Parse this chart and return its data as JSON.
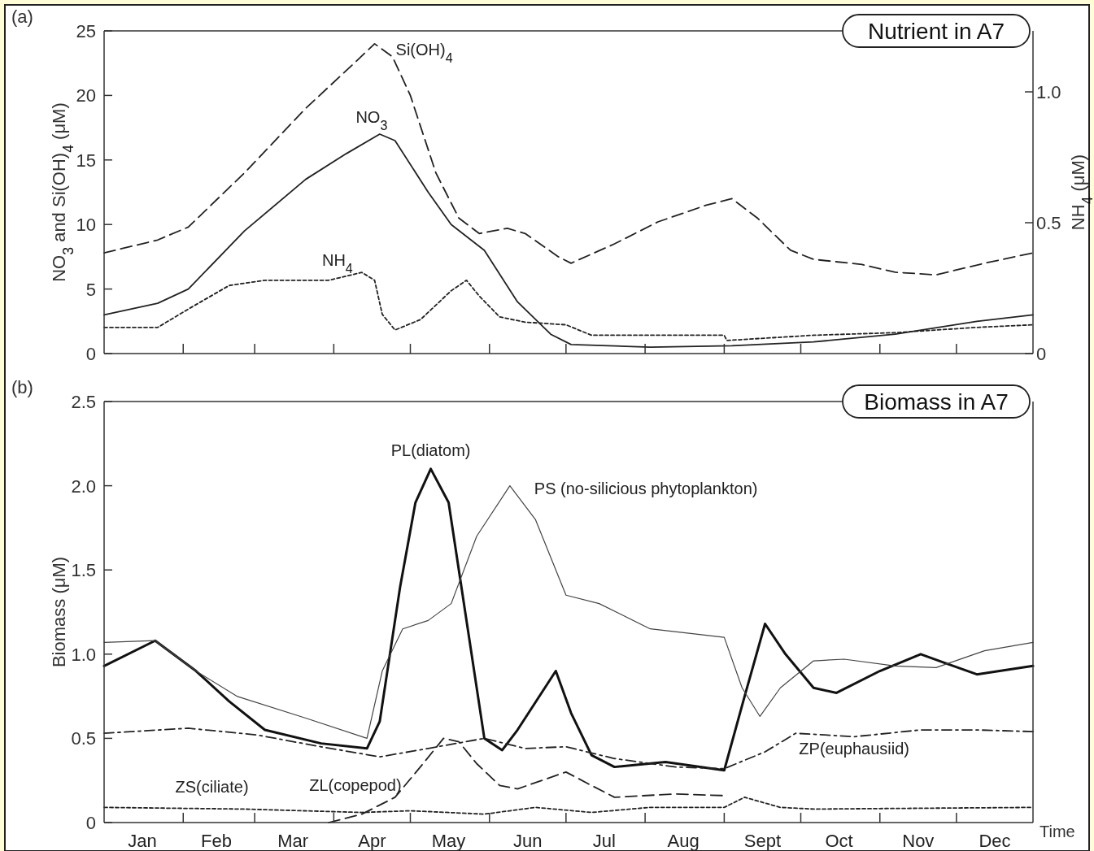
{
  "chart_data": [
    {
      "type": "line",
      "title": "Nutrient in A7",
      "ylabel": "NO$_{3}$ and Si(OH)$_{4}$ (μM)",
      "y2label": "NH$_{4}$ (μM)",
      "annotations": [
        "(a)"
      ],
      "tick_labels": "y",
      "xlim": [
        "--01-01",
        "--12-31"
      ],
      "xticks": [
        {
          "value": "--02-01",
          "label": null
        },
        {
          "value": "--03-01",
          "label": null
        },
        {
          "value": "--04-01",
          "label": null
        },
        {
          "value": "--05-01",
          "label": null
        },
        {
          "value": "--06-01",
          "label": null
        },
        {
          "value": "--07-01",
          "label": null
        },
        {
          "value": "--08-01",
          "label": null
        },
        {
          "value": "--09-01",
          "label": null
        },
        {
          "value": "--10-01",
          "label": null
        },
        {
          "value": "--11-01",
          "label": null
        },
        {
          "value": "--12-01",
          "label": null
        }
      ],
      "ylim": [
        0,
        25
      ],
      "yticks": [
        0,
        5,
        10,
        15,
        20,
        25
      ],
      "y2lim": [
        0,
        1.233
      ],
      "y2ticks": [
        0,
        {
          "value": 0.5,
          "label": "0.5"
        },
        {
          "value": 1,
          "label": "1.0"
        }
      ],
      "series": [
        {
          "name": "Si(OH)$_{4}$",
          "color": "#222222",
          "line_style": "dashed",
          "x": [
            "--01-01",
            "--01-22",
            "--02-03",
            "--02-25",
            "--03-21",
            "--04-09",
            "--04-17",
            "--04-24",
            "--05-01",
            "--05-11",
            "--05-20",
            "--05-28",
            "--06-08",
            "--06-15",
            "--06-28",
            "--07-03",
            "--07-20",
            "--08-06",
            "--08-25",
            "--09-04",
            "--09-14",
            "--09-27",
            "--10-06",
            "--10-25",
            "--11-07",
            "--11-23",
            "--12-12",
            "--12-31"
          ],
          "values": [
            7.8,
            8.8,
            9.8,
            14,
            19,
            22.5,
            24,
            23,
            20,
            14,
            10.5,
            9.3,
            9.7,
            9.3,
            7.5,
            7.0,
            8.5,
            10.2,
            11.5,
            12,
            10.5,
            8.0,
            7.3,
            6.9,
            6.3,
            6.1,
            7.0,
            7.8
          ]
        },
        {
          "name": "NO$_{3}$",
          "color": "#222222",
          "line_style": "solid",
          "x": [
            "--01-01",
            "--01-22",
            "--02-03",
            "--02-25",
            "--03-21",
            "--04-06",
            "--04-19",
            "--04-25",
            "--05-08",
            "--05-17",
            "--05-30",
            "--06-12",
            "--06-25",
            "--07-03",
            "--08-03",
            "--09-04",
            "--10-06",
            "--11-07",
            "--12-09",
            "--12-31"
          ],
          "values": [
            3.0,
            3.9,
            5.0,
            9.5,
            13.5,
            15.5,
            17,
            16.5,
            12.5,
            10,
            8,
            4,
            1.5,
            0.7,
            0.5,
            0.6,
            0.9,
            1.5,
            2.5,
            3.0
          ]
        },
        {
          "name": "NH$_{4}$",
          "color": "#222222",
          "line_style": "dotted",
          "axis": "y2",
          "x": [
            "--01-01",
            "--01-22",
            "--02-03",
            "--02-19",
            "--03-05",
            "--03-30",
            "--04-12",
            "--04-17",
            "--04-20",
            "--04-25",
            "--05-05",
            "--05-17",
            "--05-23",
            "--05-28",
            "--06-05",
            "--06-15",
            "--07-01",
            "--07-11",
            "--08-03",
            "--09-01",
            "--09-02",
            "--10-06",
            "--11-07",
            "--12-09",
            "--12-31"
          ],
          "values": [
            0.1,
            0.1,
            0.17,
            0.26,
            0.28,
            0.28,
            0.31,
            0.28,
            0.15,
            0.09,
            0.13,
            0.24,
            0.28,
            0.22,
            0.14,
            0.12,
            0.11,
            0.07,
            0.07,
            0.07,
            0.05,
            0.07,
            0.08,
            0.1,
            0.11
          ]
        }
      ]
    },
    {
      "type": "line",
      "title": "Biomass in A7",
      "ylabel": "Biomass  (μM)",
      "xlabel": "Time",
      "annotations": [
        "(b)"
      ],
      "xlim": [
        "--01-01",
        "--12-31"
      ],
      "xticks": [
        {
          "value": "--01-16",
          "label": "Jan"
        },
        {
          "value": "--02-01",
          "label": null
        },
        {
          "value": "--02-14",
          "label": "Feb"
        },
        {
          "value": "--03-01",
          "label": null
        },
        {
          "value": "--03-16",
          "label": "Mar"
        },
        {
          "value": "--04-01",
          "label": null
        },
        {
          "value": "--04-16",
          "label": "Apr"
        },
        {
          "value": "--05-01",
          "label": null
        },
        {
          "value": "--05-16",
          "label": "May"
        },
        {
          "value": "--06-01",
          "label": null
        },
        {
          "value": "--06-16",
          "label": "Jun"
        },
        {
          "value": "--07-01",
          "label": null
        },
        {
          "value": "--07-16",
          "label": "Jul"
        },
        {
          "value": "--08-01",
          "label": null
        },
        {
          "value": "--08-16",
          "label": "Aug"
        },
        {
          "value": "--09-01",
          "label": null
        },
        {
          "value": "--09-16",
          "label": "Sept"
        },
        {
          "value": "--10-01",
          "label": null
        },
        {
          "value": "--10-16",
          "label": "Oct"
        },
        {
          "value": "--11-01",
          "label": null
        },
        {
          "value": "--11-16",
          "label": "Nov"
        },
        {
          "value": "--12-01",
          "label": null
        },
        {
          "value": "--12-16",
          "label": "Dec"
        }
      ],
      "ylim": [
        0,
        2.5
      ],
      "yticks": [
        0,
        {
          "value": 0.5,
          "label": "0.5"
        },
        {
          "value": 1,
          "label": "1.0"
        },
        {
          "value": 1.5,
          "label": "1.5"
        },
        {
          "value": 2,
          "label": "2.0"
        },
        {
          "value": 2.5,
          "label": "2.5"
        }
      ],
      "series": [
        {
          "name": "PL(diatom)",
          "color": "#111111",
          "line_style": "solid",
          "x": [
            "--01-01",
            "--01-21",
            "--02-06",
            "--02-19",
            "--03-05",
            "--03-27",
            "--04-14",
            "--04-19",
            "--04-27",
            "--05-03",
            "--05-09",
            "--05-16",
            "--05-24",
            "--05-30",
            "--06-06",
            "--06-12",
            "--06-27",
            "--07-03",
            "--07-11",
            "--07-20",
            "--08-09",
            "--09-01",
            "--09-09",
            "--09-17",
            "--09-25",
            "--10-06",
            "--10-15",
            "--11-01",
            "--11-17",
            "--11-26",
            "--12-09",
            "--12-31"
          ],
          "values": [
            0.93,
            1.08,
            0.9,
            0.72,
            0.55,
            0.47,
            0.44,
            0.6,
            1.4,
            1.9,
            2.1,
            1.9,
            1.1,
            0.5,
            0.43,
            0.55,
            0.9,
            0.65,
            0.4,
            0.33,
            0.36,
            0.31,
            0.75,
            1.18,
            1.0,
            0.8,
            0.77,
            0.9,
            1.0,
            0.95,
            0.88,
            0.93
          ]
        },
        {
          "name": "PS (no-silicious phytoplankton)",
          "color": "#444444",
          "line_style": "solid",
          "x": [
            "--01-01",
            "--01-21",
            "--02-06",
            "--02-22",
            "--03-21",
            "--04-14",
            "--04-20",
            "--04-28",
            "--05-08",
            "--05-17",
            "--05-27",
            "--06-09",
            "--06-19",
            "--07-01",
            "--07-14",
            "--08-03",
            "--09-01",
            "--09-08",
            "--09-15",
            "--09-23",
            "--10-06",
            "--10-18",
            "--11-07",
            "--11-23",
            "--12-12",
            "--12-31"
          ],
          "values": [
            1.07,
            1.08,
            0.9,
            0.75,
            0.62,
            0.5,
            0.9,
            1.15,
            1.2,
            1.3,
            1.7,
            2.0,
            1.8,
            1.35,
            1.3,
            1.15,
            1.1,
            0.8,
            0.63,
            0.8,
            0.96,
            0.97,
            0.93,
            0.92,
            1.02,
            1.07
          ]
        },
        {
          "name": "ZP(euphausiid)",
          "color": "#222222",
          "line_style": "dashdot",
          "x": [
            "--01-01",
            "--02-03",
            "--03-02",
            "--03-27",
            "--04-19",
            "--05-08",
            "--05-30",
            "--06-15",
            "--07-01",
            "--07-20",
            "--08-13",
            "--09-01",
            "--09-17",
            "--09-29",
            "--10-22",
            "--11-17",
            "--12-09",
            "--12-31"
          ],
          "values": [
            0.53,
            0.56,
            0.52,
            0.45,
            0.39,
            0.44,
            0.5,
            0.44,
            0.45,
            0.38,
            0.33,
            0.32,
            0.42,
            0.53,
            0.51,
            0.55,
            0.55,
            0.54
          ]
        },
        {
          "name": "ZL(copepod)",
          "color": "#222222",
          "line_style": "dashed",
          "x": [
            "--03-30",
            "--04-12",
            "--04-25",
            "--05-06",
            "--05-14",
            "--05-20",
            "--05-27",
            "--06-05",
            "--06-12",
            "--07-01",
            "--07-11",
            "--07-20",
            "--08-13",
            "--09-01"
          ],
          "values": [
            0,
            0.05,
            0.15,
            0.35,
            0.5,
            0.48,
            0.35,
            0.22,
            0.2,
            0.3,
            0.22,
            0.15,
            0.17,
            0.16
          ]
        },
        {
          "name": "ZS(ciliate)",
          "color": "#222222",
          "line_style": "dotted",
          "x": [
            "--01-01",
            "--02-25",
            "--04-12",
            "--05-01",
            "--05-30",
            "--06-19",
            "--07-11",
            "--08-03",
            "--09-01",
            "--09-09",
            "--09-23",
            "--10-06",
            "--12-31"
          ],
          "values": [
            0.09,
            0.08,
            0.06,
            0.07,
            0.05,
            0.09,
            0.06,
            0.09,
            0.09,
            0.15,
            0.09,
            0.08,
            0.09
          ]
        }
      ]
    }
  ]
}
